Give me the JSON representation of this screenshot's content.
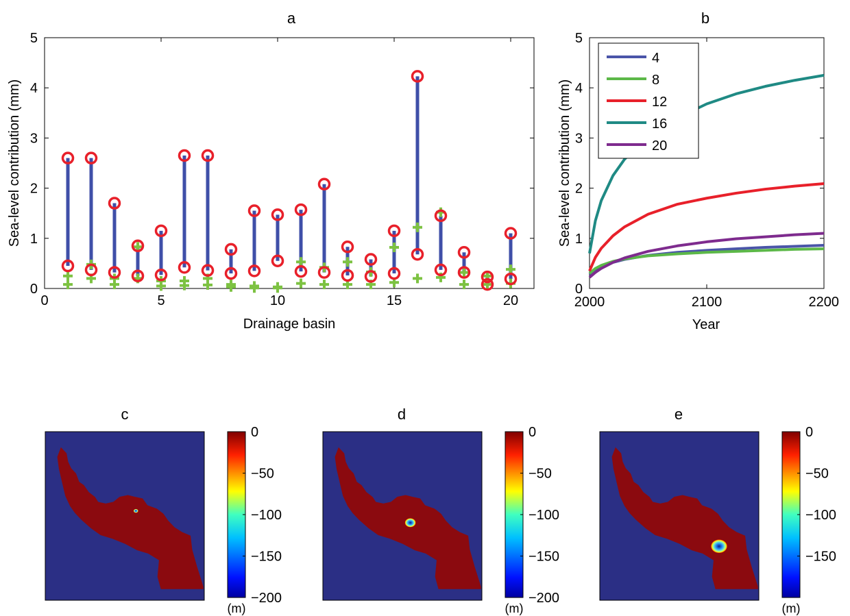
{
  "chart_data": [
    {
      "id": "a",
      "type": "scatter",
      "title": "a",
      "xlabel": "Drainage basin",
      "ylabel": "Sea-level contribution (mm)",
      "xlim": [
        0,
        21
      ],
      "ylim": [
        0,
        5
      ],
      "xticks": [
        "0",
        "5",
        "10",
        "15",
        "20"
      ],
      "yticks": [
        "0",
        "1",
        "2",
        "3",
        "4",
        "5"
      ],
      "x": [
        1,
        2,
        3,
        4,
        5,
        6,
        7,
        8,
        9,
        10,
        11,
        12,
        13,
        14,
        15,
        16,
        17,
        18,
        19,
        20
      ],
      "series": [
        {
          "marker": "circle",
          "color": "#e8202a",
          "upper": [
            2.6,
            2.6,
            1.7,
            0.85,
            1.15,
            2.65,
            2.65,
            0.78,
            1.55,
            1.47,
            1.57,
            2.08,
            0.83,
            0.58,
            1.15,
            4.23,
            1.45,
            0.72,
            0.23,
            1.1
          ],
          "lower": [
            0.45,
            0.37,
            0.32,
            0.25,
            0.27,
            0.42,
            0.36,
            0.3,
            0.35,
            0.55,
            0.34,
            0.32,
            0.26,
            0.24,
            0.3,
            0.68,
            0.37,
            0.32,
            0.08,
            0.19
          ]
        },
        {
          "marker": "plus",
          "color": "#7dc242",
          "upper": [
            0.25,
            0.48,
            0.2,
            0.83,
            0.15,
            0.15,
            0.2,
            0.08,
            0.05,
            0.03,
            0.53,
            0.42,
            0.53,
            0.33,
            0.82,
            1.22,
            1.52,
            0.32,
            0.25,
            0.38
          ],
          "lower": [
            0.08,
            0.2,
            0.08,
            0.2,
            0.05,
            0.06,
            0.07,
            0.03,
            0.01,
            0.01,
            0.1,
            0.08,
            0.08,
            0.08,
            0.12,
            0.2,
            0.22,
            0.08,
            0.08,
            0.1
          ]
        }
      ],
      "range_color": "#3f4fa8"
    },
    {
      "id": "b",
      "type": "line",
      "title": "b",
      "xlabel": "Year",
      "ylabel": "Sea-level contribution (mm)",
      "xlim": [
        2000,
        2200
      ],
      "ylim": [
        0,
        5
      ],
      "xticks": [
        "2000",
        "2100",
        "2200"
      ],
      "yticks": [
        "0",
        "1",
        "2",
        "3",
        "4",
        "5"
      ],
      "legend_position": "top-left",
      "x": [
        2000,
        2005,
        2010,
        2020,
        2030,
        2050,
        2075,
        2100,
        2125,
        2150,
        2175,
        2200
      ],
      "series": [
        {
          "name": "4",
          "color": "#4a55a8",
          "values": [
            0.28,
            0.38,
            0.44,
            0.52,
            0.58,
            0.66,
            0.72,
            0.76,
            0.79,
            0.82,
            0.84,
            0.86
          ]
        },
        {
          "name": "8",
          "color": "#5cb848",
          "values": [
            0.3,
            0.4,
            0.46,
            0.54,
            0.59,
            0.65,
            0.69,
            0.72,
            0.74,
            0.76,
            0.78,
            0.79
          ]
        },
        {
          "name": "12",
          "color": "#e8202a",
          "values": [
            0.35,
            0.62,
            0.8,
            1.05,
            1.23,
            1.48,
            1.68,
            1.8,
            1.9,
            1.98,
            2.04,
            2.09
          ]
        },
        {
          "name": "16",
          "color": "#1f8a84",
          "values": [
            0.7,
            1.35,
            1.75,
            2.25,
            2.58,
            3.02,
            3.4,
            3.68,
            3.88,
            4.03,
            4.15,
            4.25
          ]
        },
        {
          "name": "20",
          "color": "#7e2b8e",
          "values": [
            0.22,
            0.32,
            0.4,
            0.52,
            0.61,
            0.74,
            0.85,
            0.93,
            0.99,
            1.03,
            1.07,
            1.1
          ]
        }
      ]
    },
    {
      "id": "c",
      "type": "heatmap",
      "title": "c",
      "colorbar": {
        "ticks": [
          "0",
          "−50",
          "−100",
          "−150",
          "−200"
        ],
        "unit": "(m)",
        "range": [
          -200,
          0
        ]
      },
      "spot": {
        "x": 0.57,
        "y": 0.47,
        "size": 0.012
      }
    },
    {
      "id": "d",
      "type": "heatmap",
      "title": "d",
      "colorbar": {
        "ticks": [
          "0",
          "−50",
          "−100",
          "−150",
          "−200"
        ],
        "unit": "(m)",
        "range": [
          -200,
          0
        ]
      },
      "spot": {
        "x": 0.55,
        "y": 0.54,
        "size": 0.028
      }
    },
    {
      "id": "e",
      "type": "heatmap",
      "title": "e",
      "colorbar": {
        "ticks": [
          "0",
          "−50",
          "−100",
          "−150"
        ],
        "unit": "(m)",
        "range": [
          -200,
          0
        ]
      },
      "spot": {
        "x": 0.75,
        "y": 0.68,
        "size": 0.042
      }
    }
  ],
  "colors": {
    "sea": "#2b2f85",
    "ice": "#8b0a0f"
  }
}
